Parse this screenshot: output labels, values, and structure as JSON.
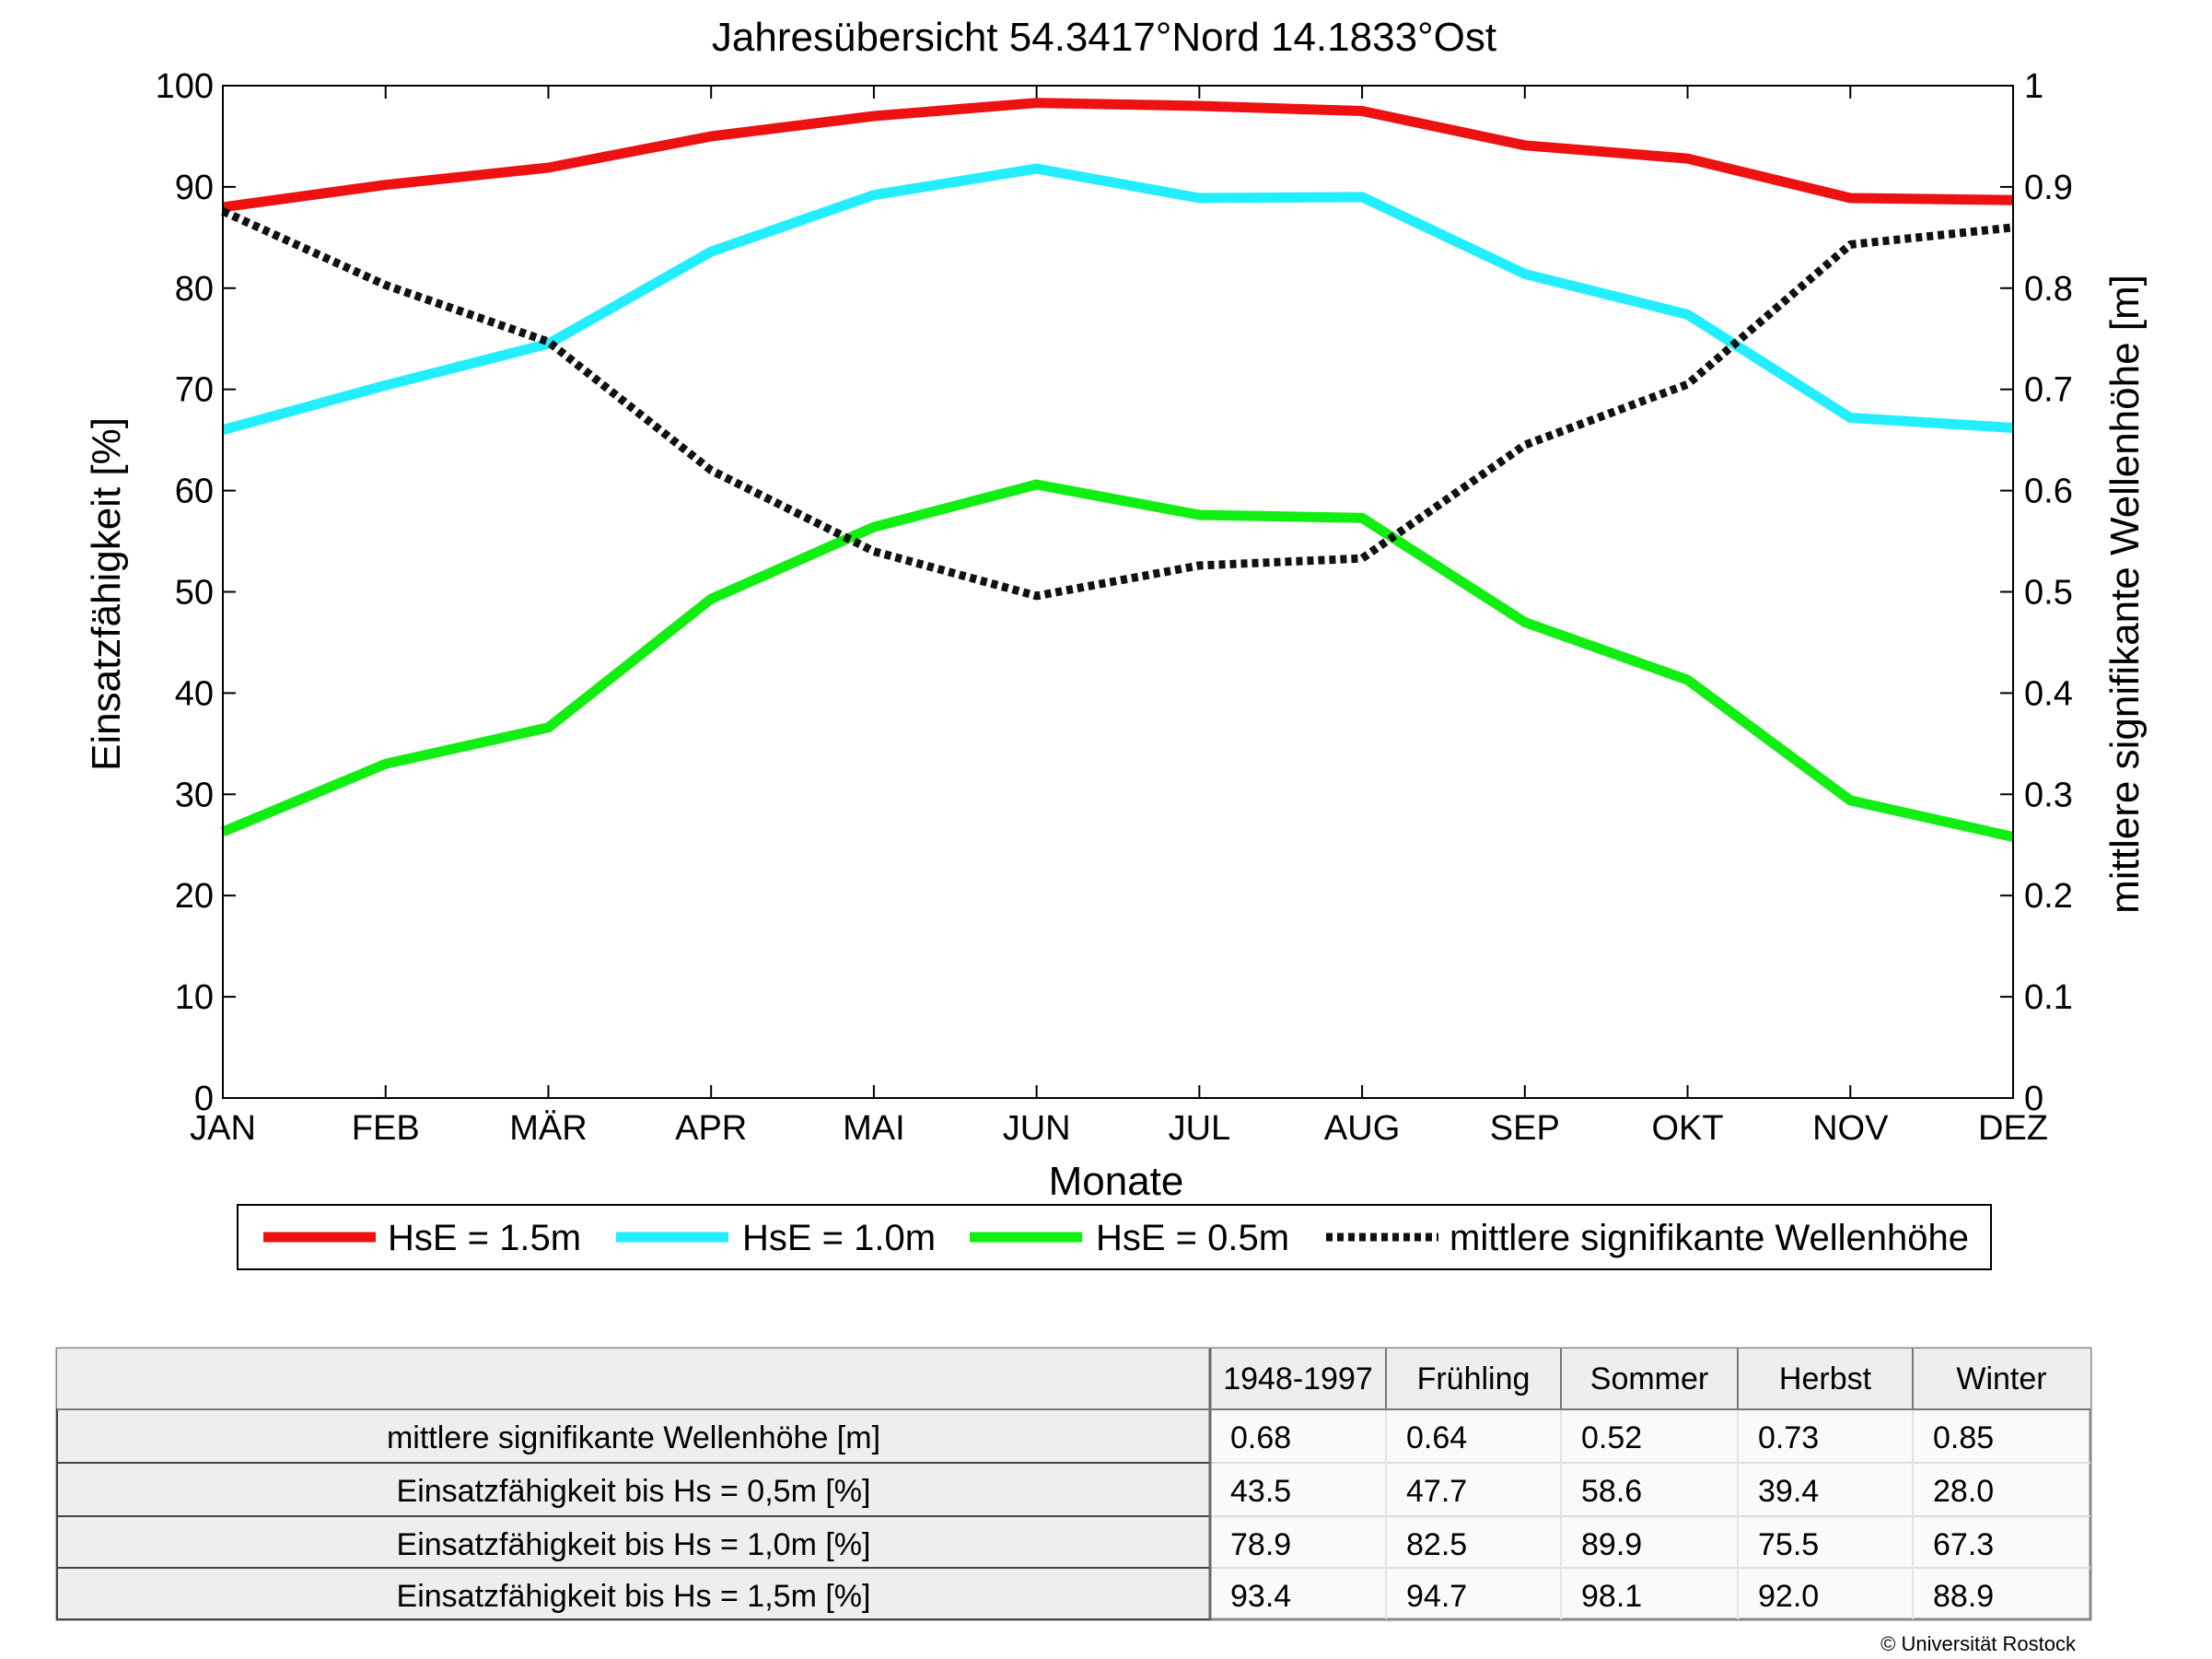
{
  "chart_data": {
    "type": "line",
    "title": "Jahresübersicht  54.3417°Nord  14.1833°Ost",
    "xlabel": "Monate",
    "ylabel": "Einsatzfähigkeit [%]",
    "y2label": "mittlere signifikante Wellenhöhe [m]",
    "categories": [
      "JAN",
      "FEB",
      "MÄR",
      "APR",
      "MAI",
      "JUN",
      "JUL",
      "AUG",
      "SEP",
      "OKT",
      "NOV",
      "DEZ"
    ],
    "ylim": [
      0,
      100
    ],
    "yticks": [
      "0",
      "10",
      "20",
      "30",
      "40",
      "50",
      "60",
      "70",
      "80",
      "90",
      "100"
    ],
    "y2lim": [
      0,
      1
    ],
    "y2ticks": [
      "0",
      "0.1",
      "0.2",
      "0.3",
      "0.4",
      "0.5",
      "0.6",
      "0.7",
      "0.8",
      "0.9",
      "1"
    ],
    "grid": false,
    "legend_position": "bottom",
    "series": [
      {
        "name": "HsE = 1.5m",
        "axis": "left",
        "color": "#ee1111",
        "style": "solid",
        "values": [
          88.0,
          90.2,
          91.9,
          95.0,
          97.0,
          98.3,
          98.0,
          97.5,
          94.1,
          92.8,
          88.9,
          88.7
        ]
      },
      {
        "name": "HsE = 1.0m",
        "axis": "left",
        "color": "#22eeff",
        "style": "solid",
        "values": [
          66.0,
          70.4,
          74.5,
          83.6,
          89.2,
          91.8,
          88.9,
          89.0,
          81.4,
          77.4,
          67.2,
          66.2
        ]
      },
      {
        "name": "HsE = 0.5m",
        "axis": "left",
        "color": "#11ee11",
        "style": "solid",
        "values": [
          26.3,
          33.0,
          36.6,
          49.3,
          56.4,
          60.6,
          57.6,
          57.3,
          47.0,
          41.3,
          29.4,
          25.8
        ]
      },
      {
        "name": "mittlere signifikante Wellenhöhe",
        "axis": "right",
        "color": "#111111",
        "style": "dotted",
        "values": [
          0.876,
          0.803,
          0.747,
          0.62,
          0.54,
          0.496,
          0.526,
          0.533,
          0.645,
          0.705,
          0.843,
          0.86
        ]
      }
    ]
  },
  "table": {
    "header": [
      "",
      "1948-1997",
      "Frühling",
      "Sommer",
      "Herbst",
      "Winter"
    ],
    "rows": [
      {
        "label": "mittlere signifikante Wellenhöhe [m]",
        "values": [
          "0.68",
          "0.64",
          "0.52",
          "0.73",
          "0.85"
        ]
      },
      {
        "label": "Einsatzfähigkeit bis Hs = 0,5m [%]",
        "values": [
          "43.5",
          "47.7",
          "58.6",
          "39.4",
          "28.0"
        ]
      },
      {
        "label": "Einsatzfähigkeit bis Hs = 1,0m [%]",
        "values": [
          "78.9",
          "82.5",
          "89.9",
          "75.5",
          "67.3"
        ]
      },
      {
        "label": "Einsatzfähigkeit bis Hs = 1,5m [%]",
        "values": [
          "93.4",
          "94.7",
          "98.1",
          "92.0",
          "88.9"
        ]
      }
    ]
  },
  "copyright": "© Universität Rostock"
}
